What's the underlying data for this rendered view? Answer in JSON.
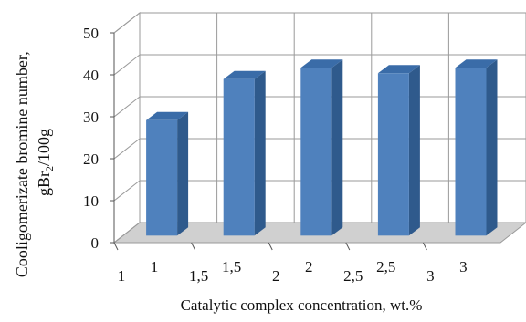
{
  "chart_data": {
    "type": "bar",
    "style": "3d-column",
    "categories": [
      "1",
      "1,5",
      "2",
      "2,5",
      "3"
    ],
    "category_ticks_back": [
      "1",
      "1,5",
      "2",
      "2,5",
      "3"
    ],
    "values": [
      27.5,
      37.3,
      40.0,
      38.7,
      40.0
    ],
    "xlabel": "Catalytic complex concentration, wt.%",
    "ylabel_line1": "Cooligomerizate bromine number,",
    "ylabel_line2_base": "gBr",
    "ylabel_line2_sub": "2",
    "ylabel_line2_tail": "/100g",
    "ylim": [
      0,
      50
    ],
    "yticks": [
      "0",
      "10",
      "20",
      "30",
      "40",
      "50"
    ],
    "grid": true,
    "colors": {
      "bar_front": "#4F81BD",
      "bar_side": "#2F5A8C",
      "bar_top": "#3A6CA8",
      "grid": "#9A9A9A",
      "floor": "#D0D0D0"
    }
  }
}
